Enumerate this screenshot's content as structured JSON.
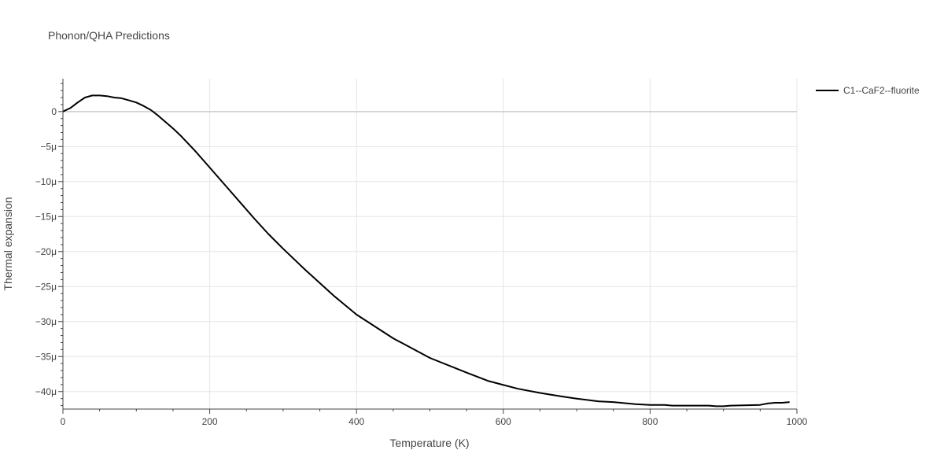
{
  "chart_data": {
    "type": "line",
    "title": "Phonon/QHA Predictions",
    "xlabel": "Temperature (K)",
    "ylabel": "Thermal expansion",
    "xlim": [
      0,
      1000
    ],
    "ylim": [
      -42.5,
      4.7
    ],
    "y_unit_suffix": "μ",
    "x_ticks": [
      0,
      200,
      400,
      600,
      800,
      1000
    ],
    "x_tick_labels": [
      "0",
      "200",
      "400",
      "600",
      "800",
      "1000"
    ],
    "y_ticks": [
      0,
      -5,
      -10,
      -15,
      -20,
      -25,
      -30,
      -35,
      -40
    ],
    "y_tick_labels": [
      "0",
      "−5μ",
      "−10μ",
      "−15μ",
      "−20μ",
      "−25μ",
      "−30μ",
      "−35μ",
      "−40μ"
    ],
    "grid": true,
    "legend_position": "top-right",
    "colors": {
      "line": "#000000",
      "grid": "#e5e5e5",
      "zeroline": "#cccccc",
      "text": "#444444"
    },
    "series": [
      {
        "name": "C1--CaF2--fluorite",
        "x": [
          0,
          10,
          20,
          30,
          40,
          50,
          60,
          70,
          80,
          90,
          100,
          110,
          120,
          130,
          140,
          150,
          160,
          180,
          200,
          220,
          240,
          260,
          280,
          300,
          330,
          370,
          400,
          450,
          500,
          550,
          580,
          620,
          650,
          680,
          700,
          730,
          750,
          780,
          800,
          820,
          830,
          850,
          880,
          890,
          900,
          910,
          950,
          960,
          970,
          980,
          990
        ],
        "y": [
          0,
          0.5,
          1.3,
          2.0,
          2.3,
          2.3,
          2.2,
          2.0,
          1.9,
          1.6,
          1.3,
          0.8,
          0.2,
          -0.6,
          -1.5,
          -2.4,
          -3.4,
          -5.6,
          -8.0,
          -10.4,
          -12.8,
          -15.2,
          -17.5,
          -19.6,
          -22.6,
          -26.4,
          -29.0,
          -32.4,
          -35.2,
          -37.3,
          -38.5,
          -39.6,
          -40.2,
          -40.7,
          -41.0,
          -41.4,
          -41.5,
          -41.8,
          -41.9,
          -41.9,
          -42.0,
          -42.0,
          -42.0,
          -42.1,
          -42.1,
          -42.0,
          -41.9,
          -41.7,
          -41.6,
          -41.6,
          -41.5
        ]
      }
    ]
  }
}
